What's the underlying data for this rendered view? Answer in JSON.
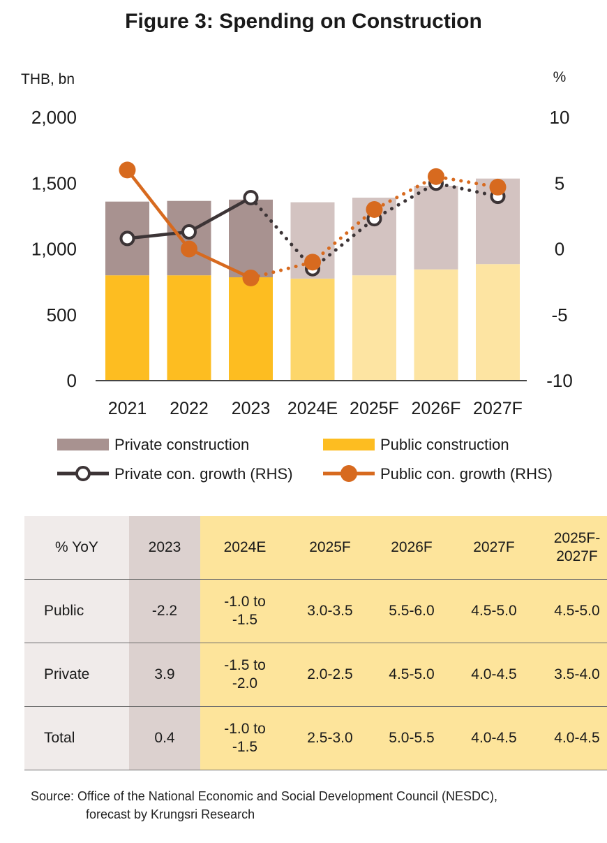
{
  "chart_data": {
    "type": "bar",
    "title": "Figure 3: Spending on Construction",
    "left_axis_unit": "THB, bn",
    "right_axis_unit": "%",
    "categories": [
      "2021",
      "2022",
      "2023",
      "2024E",
      "2025F",
      "2026F",
      "2027F"
    ],
    "left_ticks": [
      "2,000",
      "1,500",
      "1,000",
      "500",
      "0"
    ],
    "right_ticks": [
      "10",
      "5",
      "0",
      "-5",
      "-10"
    ],
    "ylim_left": [
      0,
      2000
    ],
    "ylim_right": [
      -10,
      10
    ],
    "stacked": true,
    "series": [
      {
        "name": "Public construction",
        "kind": "bar",
        "axis": "left",
        "values": [
          800,
          800,
          785,
          775,
          800,
          845,
          885
        ]
      },
      {
        "name": "Private construction",
        "kind": "bar",
        "axis": "left",
        "values": [
          560,
          565,
          590,
          580,
          590,
          635,
          650
        ]
      },
      {
        "name": "Private con. growth (RHS)",
        "kind": "line",
        "axis": "right",
        "values": [
          0.8,
          1.3,
          3.9,
          -1.5,
          2.3,
          5.0,
          4.0
        ]
      },
      {
        "name": "Public con. growth (RHS)",
        "kind": "line",
        "axis": "right",
        "values": [
          6.0,
          0.0,
          -2.2,
          -1.0,
          3.0,
          5.5,
          4.7
        ]
      }
    ],
    "forecast_from_index": 2,
    "legend_position": "bottom",
    "grid": false,
    "colors": {
      "private_actual": "#a89290",
      "private_forecast": "#d3c3c1",
      "public_actual": "#fdbd21",
      "public_2024E": "#fdd66a",
      "public_forecast": "#fde4a2",
      "private_line": "#3c3436",
      "public_line": "#d76a1f"
    }
  },
  "table": {
    "headers": [
      "% YoY",
      "2023",
      "2024E",
      "2025F",
      "2026F",
      "2027F",
      "2025F-\n2027F"
    ],
    "rows": [
      [
        "Public",
        "-2.2",
        "-1.0 to\n-1.5",
        "3.0-3.5",
        "5.5-6.0",
        "4.5-5.0",
        "4.5-5.0"
      ],
      [
        "Private",
        "3.9",
        "-1.5 to\n-2.0",
        "2.0-2.5",
        "4.5-5.0",
        "4.0-4.5",
        "3.5-4.0"
      ],
      [
        "Total",
        "0.4",
        "-1.0 to\n-1.5",
        "2.5-3.0",
        "5.0-5.5",
        "4.0-4.5",
        "4.0-4.5"
      ]
    ]
  },
  "source": {
    "line1": "Source: Office of the National Economic and Social Development Council (NESDC),",
    "line2": "forecast by Krungsri Research"
  }
}
